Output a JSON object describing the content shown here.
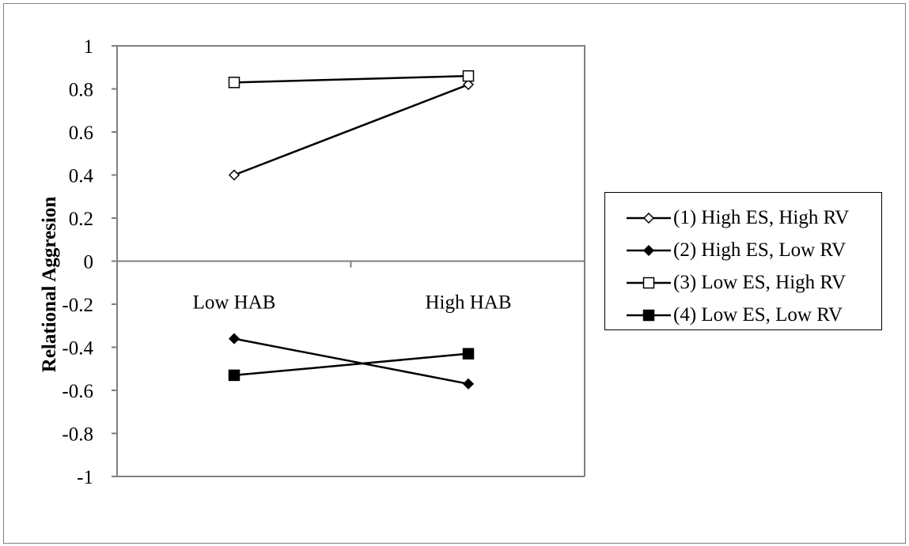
{
  "chart_data": {
    "type": "line",
    "title": "",
    "xlabel": "",
    "ylabel": "Relational Aggresion",
    "ylim": [
      -1,
      1
    ],
    "yticks": [
      "1",
      "0.8",
      "0.6",
      "0.4",
      "0.2",
      "0",
      "-0.2",
      "-0.4",
      "-0.6",
      "-0.8",
      "-1"
    ],
    "categories": [
      "Low HAB",
      "High HAB"
    ],
    "grid": false,
    "legend_position": "right",
    "series": [
      {
        "name": "(1) High ES, High RV",
        "marker": "diamond-open",
        "values": [
          0.4,
          0.82
        ]
      },
      {
        "name": "(2) High ES, Low RV",
        "marker": "diamond-filled",
        "values": [
          -0.36,
          -0.57
        ]
      },
      {
        "name": "(3) Low ES, High RV",
        "marker": "square-open",
        "values": [
          0.83,
          0.86
        ]
      },
      {
        "name": "(4) Low ES, Low RV",
        "marker": "square-filled",
        "values": [
          -0.53,
          -0.43
        ]
      }
    ],
    "colors": {
      "line": "#000000",
      "axis": "#7f7f7f",
      "marker_fill_open": "#ffffff",
      "marker_fill_filled": "#000000"
    }
  }
}
